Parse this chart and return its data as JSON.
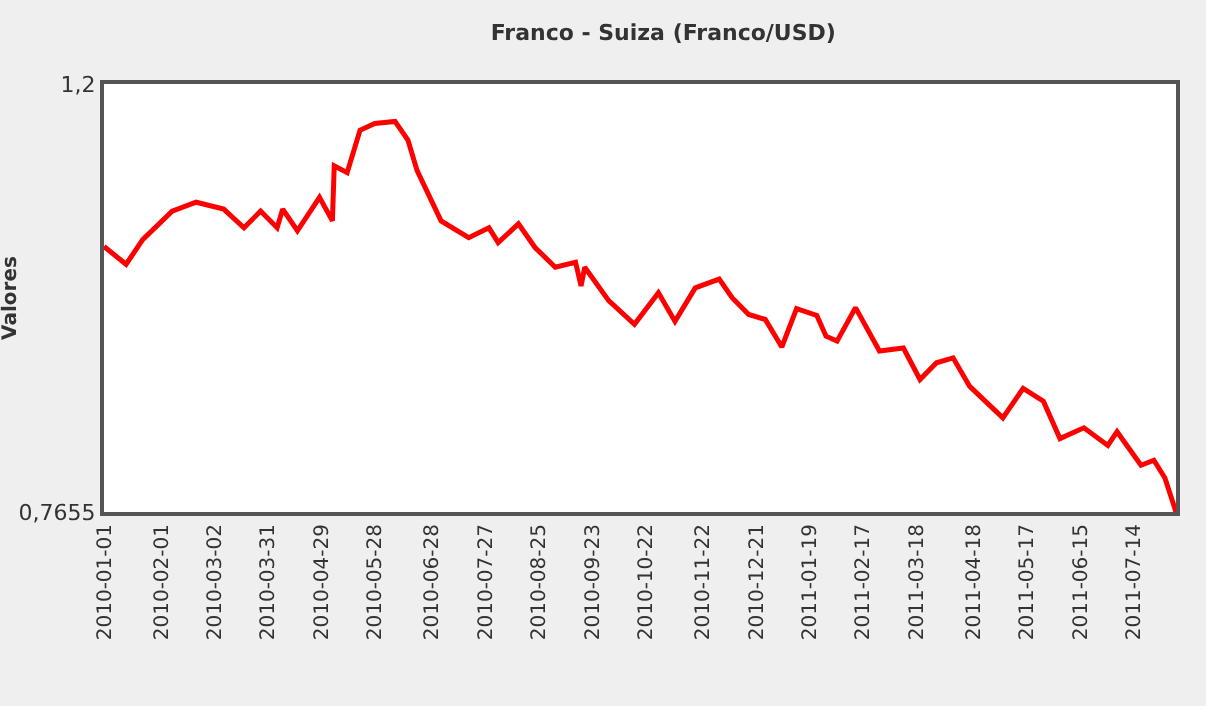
{
  "chart_data": {
    "type": "line",
    "title": "Franco - Suiza (Franco/USD)",
    "ylabel": "Valores",
    "x": [
      "2010-01-01",
      "2010-01-13",
      "2010-01-22",
      "2010-02-07",
      "2010-02-20",
      "2010-03-07",
      "2010-03-18",
      "2010-03-27",
      "2010-04-05",
      "2010-04-08",
      "2010-04-16",
      "2010-04-28",
      "2010-05-05",
      "2010-05-06",
      "2010-05-13",
      "2010-05-20",
      "2010-05-28",
      "2010-06-08",
      "2010-06-15",
      "2010-06-20",
      "2010-07-03",
      "2010-07-18",
      "2010-07-29",
      "2010-08-03",
      "2010-08-14",
      "2010-08-23",
      "2010-09-03",
      "2010-09-14",
      "2010-09-17",
      "2010-09-19",
      "2010-10-02",
      "2010-10-16",
      "2010-10-29",
      "2010-11-07",
      "2010-11-18",
      "2010-12-01",
      "2010-12-08",
      "2010-12-17",
      "2010-12-26",
      "2011-01-04",
      "2011-01-12",
      "2011-01-23",
      "2011-01-28",
      "2011-02-03",
      "2011-02-13",
      "2011-02-26",
      "2011-03-11",
      "2011-03-20",
      "2011-03-29",
      "2011-04-07",
      "2011-04-16",
      "2011-05-04",
      "2011-05-15",
      "2011-05-26",
      "2011-06-04",
      "2011-06-17",
      "2011-06-30",
      "2011-07-05",
      "2011-07-18",
      "2011-07-25",
      "2011-07-31",
      "2011-08-06"
    ],
    "series": [
      {
        "color": "#ff0000",
        "values": [
          1.035,
          1.017,
          1.042,
          1.071,
          1.08,
          1.073,
          1.054,
          1.071,
          1.054,
          1.073,
          1.051,
          1.085,
          1.061,
          1.117,
          1.11,
          1.153,
          1.16,
          1.162,
          1.143,
          1.112,
          1.061,
          1.044,
          1.054,
          1.039,
          1.058,
          1.034,
          1.014,
          1.019,
          0.995,
          1.014,
          0.98,
          0.956,
          0.988,
          0.959,
          0.993,
          1.002,
          0.983,
          0.966,
          0.961,
          0.933,
          0.972,
          0.965,
          0.944,
          0.939,
          0.973,
          0.929,
          0.932,
          0.9,
          0.917,
          0.922,
          0.893,
          0.861,
          0.891,
          0.878,
          0.84,
          0.851,
          0.833,
          0.847,
          0.813,
          0.818,
          0.8,
          0.7655
        ]
      }
    ],
    "xlim": [
      "2010-01-01",
      "2011-08-06"
    ],
    "xticks": [
      "2010-01-01",
      "2010-02-01",
      "2010-03-02",
      "2010-03-31",
      "2010-04-29",
      "2010-05-28",
      "2010-06-28",
      "2010-07-27",
      "2010-08-25",
      "2010-09-23",
      "2010-10-22",
      "2010-11-22",
      "2010-12-21",
      "2011-01-19",
      "2011-02-17",
      "2011-03-18",
      "2011-04-18",
      "2011-05-17",
      "2011-06-15",
      "2011-07-14"
    ],
    "ylim": [
      0.7655,
      1.2
    ],
    "yticks": [
      {
        "value": 0.7655,
        "label": "0,7655"
      },
      {
        "value": 1.2,
        "label": "1,2"
      }
    ],
    "grid": false,
    "marker": "none",
    "line_style": "solid"
  }
}
